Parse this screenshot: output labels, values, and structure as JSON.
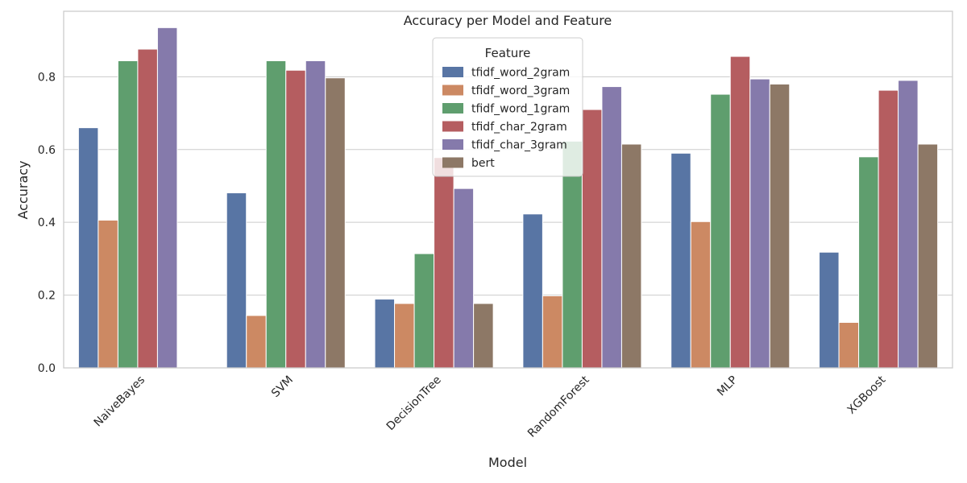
{
  "chart_data": {
    "type": "bar",
    "title": "Accuracy per Model and Feature",
    "xlabel": "Model",
    "ylabel": "Accuracy",
    "ylim": [
      0,
      0.98
    ],
    "yticks": [
      0.0,
      0.2,
      0.4,
      0.6,
      0.8
    ],
    "ytick_labels": [
      "0.0",
      "0.2",
      "0.4",
      "0.6",
      "0.8"
    ],
    "grid": "horizontal",
    "legend_title": "Feature",
    "legend_position": "top-center",
    "categories": [
      "NaiveBayes",
      "SVM",
      "DecisionTree",
      "RandomForest",
      "MLP",
      "XGBoost"
    ],
    "series": [
      {
        "name": "tfidf_word_2gram",
        "color": "#5875a4",
        "values": [
          0.66,
          0.481,
          0.189,
          0.423,
          0.59,
          0.318
        ]
      },
      {
        "name": "tfidf_word_3gram",
        "color": "#cc8963",
        "values": [
          0.406,
          0.144,
          0.177,
          0.198,
          0.402,
          0.125
        ]
      },
      {
        "name": "tfidf_word_1gram",
        "color": "#5f9e6e",
        "values": [
          0.844,
          0.844,
          0.314,
          0.623,
          0.752,
          0.58
        ]
      },
      {
        "name": "tfidf_char_2gram",
        "color": "#b55d60",
        "values": [
          0.876,
          0.818,
          0.578,
          0.71,
          0.856,
          0.763
        ]
      },
      {
        "name": "tfidf_char_3gram",
        "color": "#857aab",
        "values": [
          0.935,
          0.844,
          0.493,
          0.773,
          0.794,
          0.79
        ]
      },
      {
        "name": "bert",
        "color": "#8d7866",
        "values": [
          0.0,
          0.797,
          0.177,
          0.615,
          0.78,
          0.615
        ]
      }
    ]
  }
}
